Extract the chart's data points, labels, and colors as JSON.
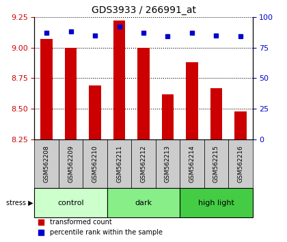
{
  "title": "GDS3933 / 266991_at",
  "samples": [
    "GSM562208",
    "GSM562209",
    "GSM562210",
    "GSM562211",
    "GSM562212",
    "GSM562213",
    "GSM562214",
    "GSM562215",
    "GSM562216"
  ],
  "bar_values": [
    9.07,
    9.0,
    8.69,
    9.22,
    9.0,
    8.62,
    8.88,
    8.67,
    8.48
  ],
  "percentile_values": [
    87,
    88,
    85,
    92,
    87,
    84,
    87,
    85,
    84
  ],
  "ylim": [
    8.25,
    9.25
  ],
  "ylim_right": [
    0,
    100
  ],
  "yticks_left": [
    8.25,
    8.5,
    8.75,
    9.0,
    9.25
  ],
  "yticks_right": [
    0,
    25,
    50,
    75,
    100
  ],
  "bar_color": "#cc0000",
  "dot_color": "#0000cc",
  "groups": [
    {
      "label": "control",
      "start": 0,
      "end": 3,
      "color": "#ccffcc"
    },
    {
      "label": "dark",
      "start": 3,
      "end": 6,
      "color": "#88ee88"
    },
    {
      "label": "high light",
      "start": 6,
      "end": 9,
      "color": "#44cc44"
    }
  ],
  "group_label_color_light": "#ccffcc",
  "group_label_color_mid": "#88ee88",
  "group_label_color_dark": "#44cc44",
  "stress_label": "stress",
  "legend_items": [
    {
      "color": "#cc0000",
      "label": "transformed count"
    },
    {
      "color": "#0000cc",
      "label": "percentile rank within the sample"
    }
  ],
  "xlabel_color_left": "#cc0000",
  "xlabel_color_right": "#0000cc",
  "grid_color": "black",
  "tick_label_size": 8
}
